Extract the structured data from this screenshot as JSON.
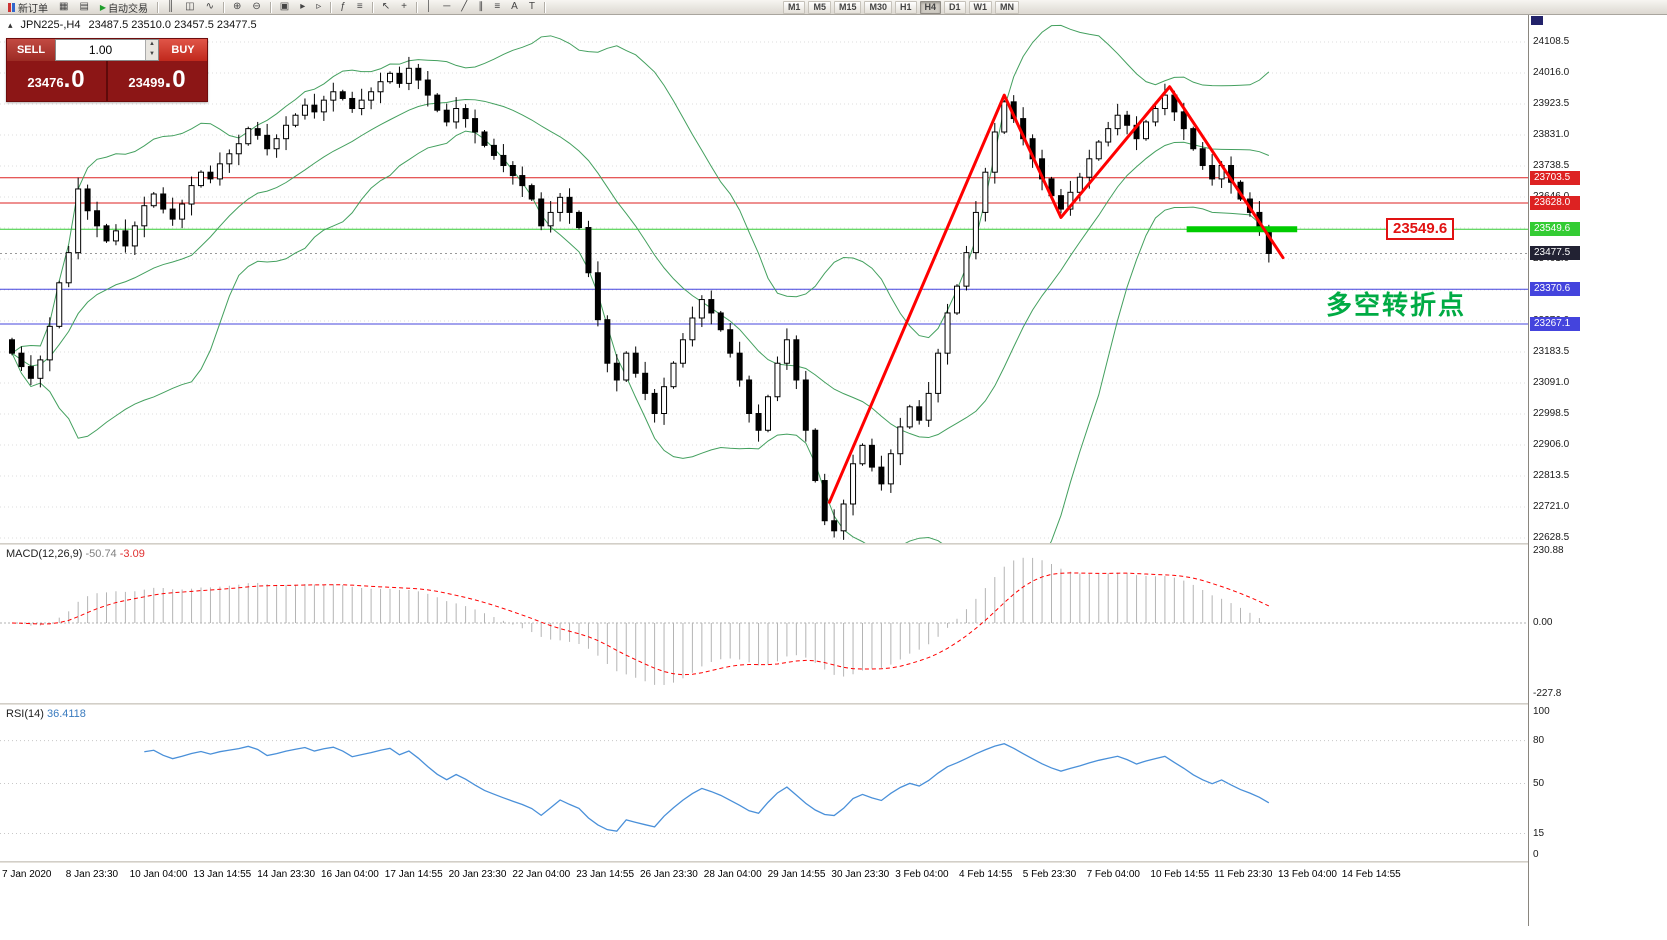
{
  "app": {
    "toolbar": {
      "items": [
        {
          "id": "new-order",
          "label": "新订单",
          "icon": "candles"
        },
        {
          "id": "chart-windows",
          "glyph": "▦"
        },
        {
          "id": "profiles",
          "glyph": "▤"
        },
        {
          "id": "auto-trading",
          "label": "自动交易",
          "icon": "play"
        },
        {
          "sep": true
        },
        {
          "id": "chart-bars",
          "glyph": "║"
        },
        {
          "id": "chart-candlesticks",
          "glyph": "◫"
        },
        {
          "id": "chart-line",
          "glyph": "∿"
        },
        {
          "sep": true
        },
        {
          "id": "zoom-in",
          "glyph": "⊕"
        },
        {
          "id": "zoom-out",
          "glyph": "⊖"
        },
        {
          "sep": true
        },
        {
          "id": "tile-windows",
          "glyph": "▣"
        },
        {
          "id": "auto-scroll",
          "glyph": "▸"
        },
        {
          "id": "chart-shift",
          "glyph": "▹"
        },
        {
          "sep": true
        },
        {
          "id": "indicators",
          "glyph": "ƒ"
        },
        {
          "id": "objects-list",
          "glyph": "≡"
        },
        {
          "sep": true
        },
        {
          "id": "cursor",
          "glyph": "↖"
        },
        {
          "id": "crosshair",
          "glyph": "+"
        },
        {
          "sep": true
        },
        {
          "id": "vertical-line",
          "glyph": "│"
        },
        {
          "id": "horizontal-line",
          "glyph": "─"
        },
        {
          "id": "trendline",
          "glyph": "╱"
        },
        {
          "id": "equidistant-channel",
          "glyph": "∥"
        },
        {
          "id": "fibonacci",
          "glyph": "≡"
        },
        {
          "id": "text",
          "glyph": "A"
        },
        {
          "id": "text-label",
          "glyph": "T"
        },
        {
          "sep": true
        }
      ],
      "timeframes": [
        "M1",
        "M5",
        "M15",
        "M30",
        "H1",
        "H4",
        "D1",
        "W1",
        "MN"
      ],
      "active_timeframe": "H4"
    }
  },
  "chart_header": {
    "collapse_marker": "▴",
    "symbol_period": "JPN225-,H4",
    "ohlc_text": "23487.5 23510.0 23457.5 23477.5"
  },
  "trade_panel": {
    "sell_label": "SELL",
    "buy_label": "BUY",
    "volume": "1.00",
    "sell_price_main": "23476",
    "sell_price_frac": ".0",
    "buy_price_main": "23499",
    "buy_price_frac": ".0"
  },
  "annotations": {
    "price_callout": "23549.6",
    "turning_point_text": "多空转折点",
    "turning_point_color": "#00ab44"
  },
  "chart_data": {
    "type": "candlestick",
    "symbol": "JPN225-",
    "timeframe": "H4",
    "open0": 23220,
    "closes": [
      23180,
      23140,
      23105,
      23160,
      23260,
      23390,
      23480,
      23670,
      23605,
      23560,
      23515,
      23545,
      23500,
      23560,
      23620,
      23655,
      23610,
      23580,
      23625,
      23680,
      23720,
      23700,
      23745,
      23775,
      23805,
      23850,
      23830,
      23790,
      23820,
      23860,
      23890,
      23920,
      23900,
      23935,
      23960,
      23940,
      23910,
      23935,
      23960,
      23990,
      24015,
      23985,
      24030,
      23995,
      23950,
      23905,
      23870,
      23910,
      23880,
      23840,
      23800,
      23770,
      23740,
      23710,
      23680,
      23640,
      23560,
      23600,
      23645,
      23600,
      23555,
      23420,
      23280,
      23150,
      23100,
      23180,
      23120,
      23060,
      23000,
      23080,
      23150,
      23220,
      23285,
      23340,
      23300,
      23250,
      23180,
      23100,
      23000,
      22950,
      23050,
      23150,
      23220,
      23100,
      22950,
      22800,
      22680,
      22650,
      22730,
      22850,
      22905,
      22840,
      22790,
      22880,
      22960,
      23020,
      22980,
      23060,
      23180,
      23300,
      23380,
      23480,
      23600,
      23720,
      23840,
      23930,
      23880,
      23820,
      23760,
      23700,
      23650,
      23610,
      23660,
      23705,
      23760,
      23810,
      23850,
      23890,
      23860,
      23820,
      23870,
      23910,
      23950,
      23900,
      23850,
      23790,
      23740,
      23700,
      23740,
      23690,
      23640,
      23600,
      23550,
      23477.5
    ],
    "price_axis": {
      "top": 24108.5,
      "step": 92.5,
      "count": 17
    },
    "levels": [
      {
        "price": 23703.5,
        "color": "#dd2222"
      },
      {
        "price": 23628.0,
        "color": "#dd2222"
      },
      {
        "price": 23549.6,
        "color": "#33cc33"
      },
      {
        "price": 23370.6,
        "color": "#4444dd"
      },
      {
        "price": 23267.1,
        "color": "#4444dd"
      }
    ],
    "current_price": 23477.5,
    "current_tag_color": "#222233",
    "support_segment": {
      "from": 124.3,
      "to": 136,
      "price": 23549.6,
      "color": "#00cc00"
    },
    "zigzag": {
      "color": "#ff0000",
      "points": [
        [
          86.5,
          22735
        ],
        [
          105,
          23950
        ],
        [
          111,
          23585
        ],
        [
          122.5,
          23975
        ],
        [
          134.5,
          23465
        ]
      ]
    },
    "bands": {
      "period": 20,
      "deviation": 2,
      "color": "#44a05f"
    },
    "candle_colors": {
      "up": "#ffffff",
      "down": "#000000",
      "outline": "#000000"
    },
    "macd": {
      "name": "MACD(12,26,9)",
      "value_main": "-50.74",
      "value_signal": "-3.09",
      "scale": [
        "230.88",
        "0.00",
        "-227.8"
      ],
      "scale_values": [
        230.88,
        0,
        -227.8
      ],
      "hist_color": "#b4b4b4",
      "signal_color": "#ff0000"
    },
    "rsi": {
      "name": "RSI(14)",
      "value": "36.4118",
      "scale_values": [
        100,
        80,
        50,
        15,
        0
      ],
      "levels": [
        80,
        50,
        15
      ],
      "line_color": "#4a90d9"
    },
    "x_labels": [
      "7 Jan 2020",
      "8 Jan 23:30",
      "10 Jan 04:00",
      "13 Jan 14:55",
      "14 Jan 23:30",
      "16 Jan 04:00",
      "17 Jan 14:55",
      "20 Jan 23:30",
      "22 Jan 04:00",
      "23 Jan 14:55",
      "26 Jan 23:30",
      "28 Jan 04:00",
      "29 Jan 14:55",
      "30 Jan 23:30",
      "3 Feb 04:00",
      "4 Feb 14:55",
      "5 Feb 23:30",
      "7 Feb 04:00",
      "10 Feb 14:55",
      "11 Feb 23:30",
      "13 Feb 04:00",
      "14 Feb 14:55"
    ]
  }
}
